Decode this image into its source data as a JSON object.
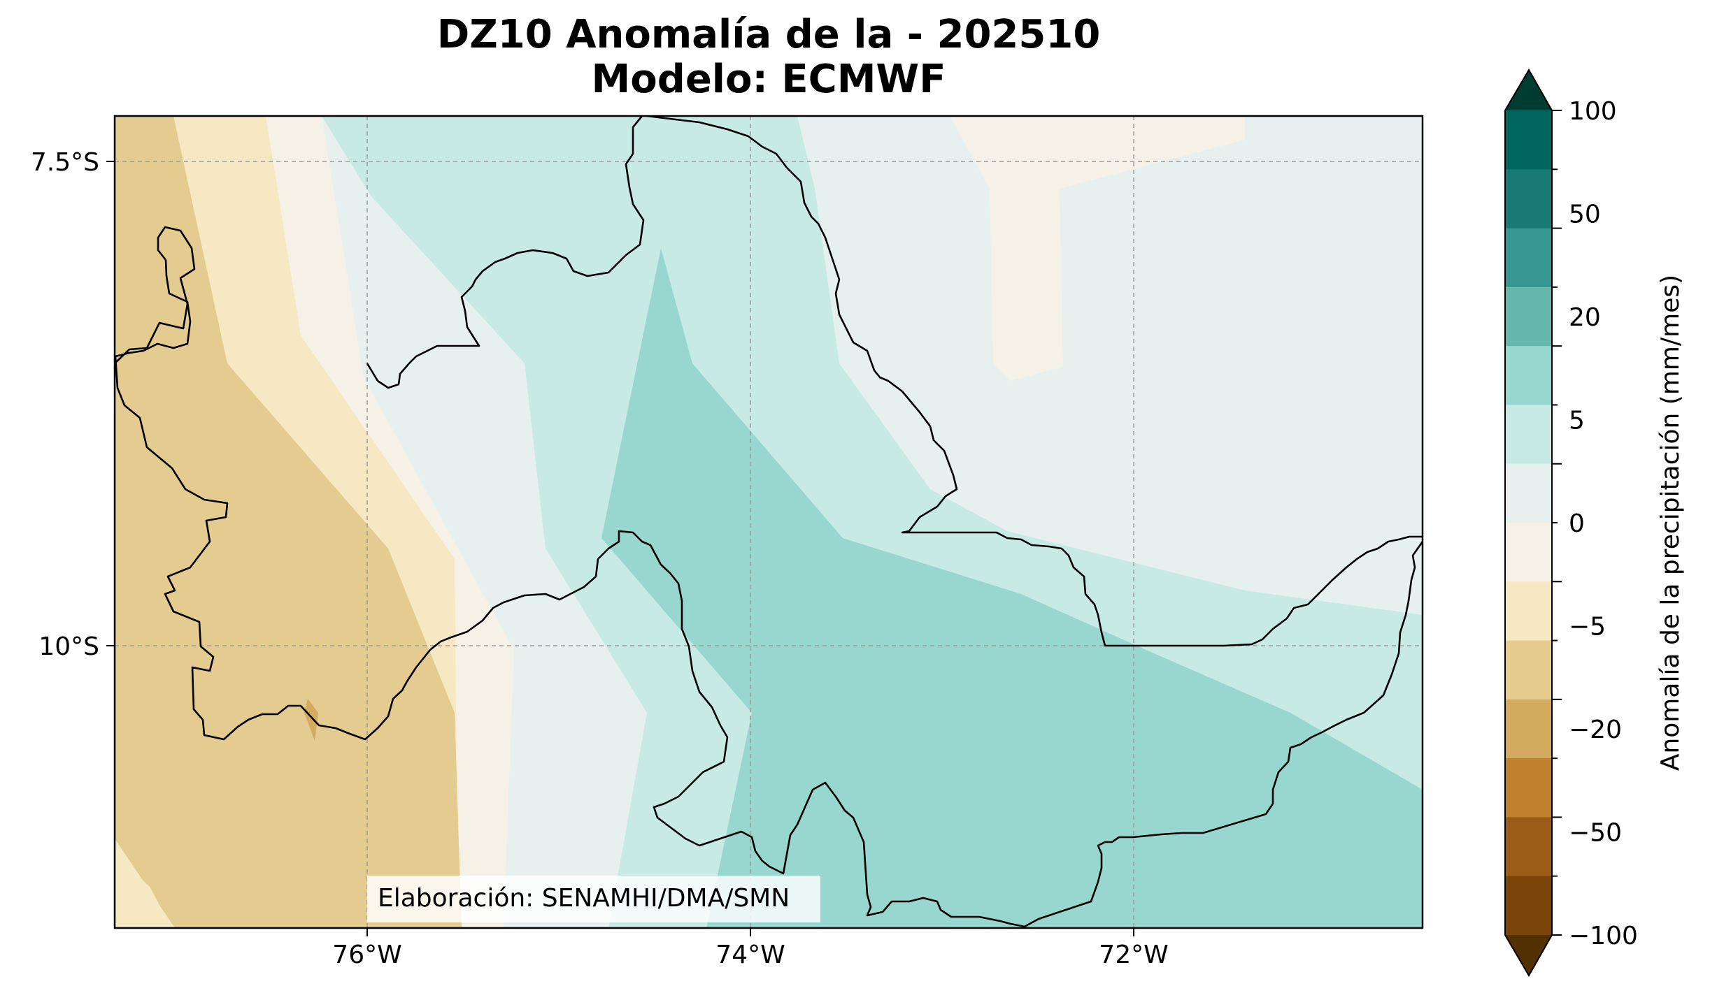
{
  "title": {
    "line1": "DZ10 Anomalía de la - 202510",
    "line2": "Modelo: ECMWF"
  },
  "map": {
    "lon_ticks": [
      "76°W",
      "74°W",
      "72°W"
    ],
    "lat_ticks": [
      "7.5°S",
      "10°S"
    ],
    "credit": "Elaboración: SENAMHI/DMA/SMN",
    "gridlines": true
  },
  "colorbar": {
    "label": "Anomalía de la precipitación (mm/mes)",
    "tick_labels": [
      "100",
      "50",
      "20",
      "5",
      "0",
      "−5",
      "−20",
      "−50",
      "−100"
    ],
    "colors_top_to_bottom": [
      "#003c30",
      "#01665e",
      "#187a72",
      "#35978f",
      "#66b8ad",
      "#98d7cf",
      "#c7eae5",
      "#e6f0ef",
      "#f5f1e6",
      "#f6e8c3",
      "#e6cc8e",
      "#d3aa5e",
      "#bf812d",
      "#9a5c17",
      "#7a4409",
      "#543005"
    ]
  },
  "colors": {
    "brown_strong": "#e4cb8f",
    "brown_light": "#f5e8c3",
    "neutral_warm": "#f5f1e6",
    "neutral_cool": "#e6f0ef",
    "teal_light": "#c7eae5",
    "teal_mid": "#98d7cf",
    "dark_brown": "#d3aa5e"
  }
}
